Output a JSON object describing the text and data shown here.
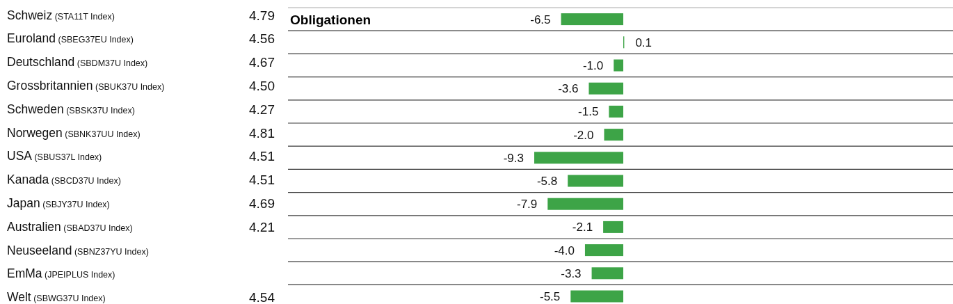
{
  "chart_data": {
    "type": "bar",
    "orientation": "horizontal",
    "title": "Obligationen",
    "categories": [
      "Schweiz (STA11T Index)",
      "Euroland (SBEG37EU Index)",
      "Deutschland (SBDM37U Index)",
      "Grossbritannien (SBUK37U Index)",
      "Schweden (SBSK37U Index)",
      "Norwegen (SBNK37UU Index)",
      "USA (SBUS37L Index)",
      "Kanada (SBCD37U Index)",
      "Japan (SBJY37U Index)",
      "Australien (SBAD37U Index)",
      "Neuseeland (SBNZ37YU Index)",
      "EmMa (JPEIPLUS Index)",
      "Welt (SBWG37U Index)"
    ],
    "y2_categories": [
      "4.79",
      "4.56",
      "4.67",
      "4.50",
      "4.27",
      "4.81",
      "4.51",
      "4.51",
      "4.69",
      "4.21",
      null,
      null,
      "4.54"
    ],
    "values": [
      -6.5,
      0.1,
      -1.0,
      -3.6,
      -1.5,
      -2.0,
      -9.3,
      -5.8,
      -7.9,
      -2.1,
      -4.0,
      -3.3,
      -5.5
    ],
    "value_labels": [
      "-6.5",
      "0.1",
      "-1.0",
      "-3.6",
      "-1.5",
      "-2.0",
      "-9.3",
      "-5.8",
      "-7.9",
      "-2.1",
      "-4.0",
      "-3.3",
      "-5.5"
    ],
    "color": "#3da447",
    "grid": "y",
    "tick_labels": "y"
  }
}
